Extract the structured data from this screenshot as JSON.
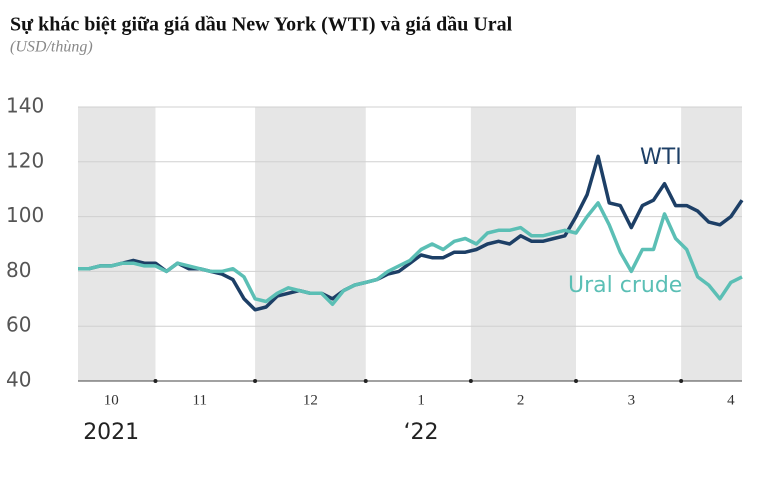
{
  "chart_data": {
    "type": "line",
    "title": "Sự khác biệt giữa giá dầu New York (WTI) và giá dầu Ural",
    "subtitle": "(USD/thùng)",
    "categories": [
      null,
      null,
      null,
      "10",
      null,
      null,
      null,
      null,
      null,
      null,
      null,
      "11",
      null,
      null,
      null,
      null,
      null,
      null,
      null,
      null,
      null,
      "12",
      null,
      null,
      null,
      null,
      null,
      null,
      null,
      null,
      null,
      "1",
      null,
      null,
      null,
      null,
      null,
      null,
      null,
      null,
      "2",
      null,
      null,
      null,
      null,
      null,
      null,
      null,
      null,
      null,
      "3",
      null,
      null,
      null,
      null,
      null,
      null,
      null,
      null,
      "4",
      null
    ],
    "annotations": [
      "2021",
      "‘22"
    ],
    "series": [
      {
        "name": "WTI",
        "color": "#1d3f66",
        "values": [
          81,
          81,
          82,
          82,
          83,
          84,
          83,
          83,
          80,
          83,
          81,
          81,
          80,
          79,
          77,
          70,
          66,
          67,
          71,
          72,
          73,
          72,
          72,
          70,
          73,
          75,
          76,
          77,
          79,
          80,
          83,
          86,
          85,
          85,
          87,
          87,
          88,
          90,
          91,
          90,
          93,
          91,
          91,
          92,
          93,
          100,
          108,
          122,
          105,
          104,
          96,
          104,
          106,
          112,
          104,
          104,
          102,
          98,
          97,
          100,
          106
        ]
      },
      {
        "name": "Ural crude",
        "color": "#5bbfb5",
        "values": [
          81,
          81,
          82,
          82,
          83,
          83,
          82,
          82,
          80,
          83,
          82,
          81,
          80,
          80,
          81,
          78,
          70,
          69,
          72,
          74,
          73,
          72,
          72,
          68,
          73,
          75,
          76,
          77,
          80,
          82,
          84,
          88,
          90,
          88,
          91,
          92,
          90,
          94,
          95,
          95,
          96,
          93,
          93,
          94,
          95,
          94,
          100,
          105,
          97,
          87,
          80,
          88,
          88,
          101,
          92,
          88,
          78,
          75,
          70,
          76,
          78
        ]
      }
    ],
    "ylim": [
      40,
      140
    ],
    "yticks": [
      40,
      60,
      80,
      100,
      120,
      140
    ],
    "grid": true
  }
}
